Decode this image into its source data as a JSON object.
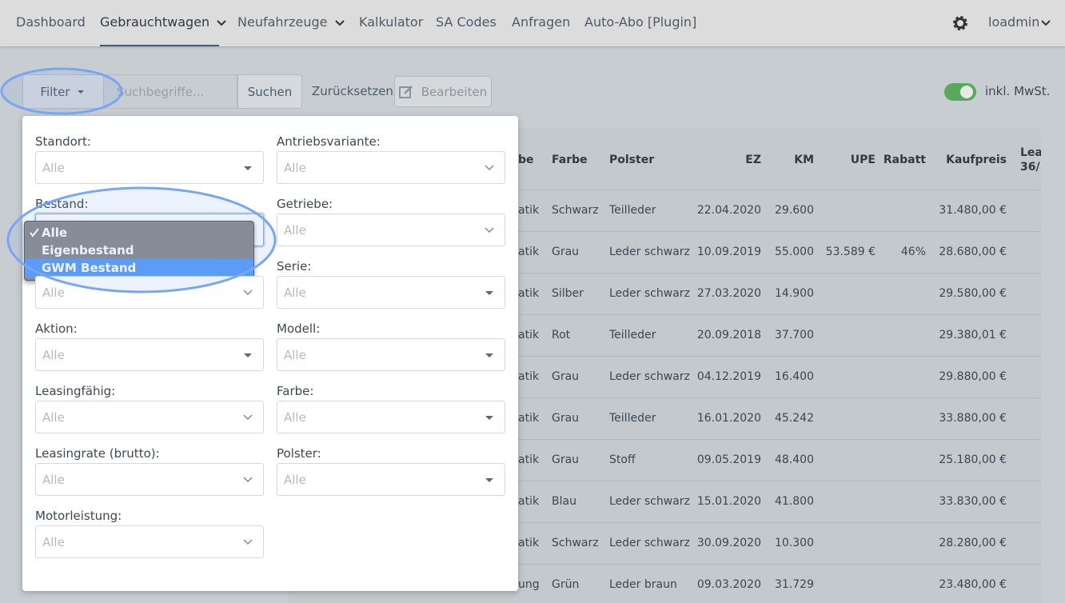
{
  "nav": {
    "items": [
      {
        "label": "Dashboard"
      },
      {
        "label": "Gebrauchtwagen",
        "dropdown": true,
        "active": true
      },
      {
        "label": "Neufahrzeuge",
        "dropdown": true
      },
      {
        "label": "Kalkulator"
      },
      {
        "label": "SA Codes"
      },
      {
        "label": "Anfragen"
      },
      {
        "label": "Auto-Abo [Plugin]"
      }
    ],
    "user": "loadmin"
  },
  "toolbar": {
    "filter": "Filter",
    "search_placeholder": "Suchbegriffe...",
    "search": "Suchen",
    "reset": "Zurücksetzen",
    "edit": "Bearbeiten",
    "vat_toggle": "inkl. MwSt."
  },
  "filter_panel": {
    "left_fields": [
      {
        "label": "Standort:",
        "value": "Alle",
        "arrow": "caret"
      },
      {
        "label": "Bestand:",
        "options": [
          "Alle",
          "Eigenbestand",
          "GWM Bestand"
        ],
        "selected": 0,
        "highlighted": 2
      },
      {
        "value": "Alle",
        "arrow": "chevron"
      },
      {
        "label": "Aktion:",
        "value": "Alle",
        "arrow": "caret"
      },
      {
        "label": "Leasingfähig:",
        "value": "Alle",
        "arrow": "chevron"
      },
      {
        "label": "Leasingrate (brutto):",
        "value": "Alle",
        "arrow": "chevron"
      },
      {
        "label": "Motorleistung:",
        "value": "Alle",
        "arrow": "chevron"
      }
    ],
    "right_fields": [
      {
        "label": "Antriebsvariante:",
        "value": "Alle",
        "arrow": "chevron"
      },
      {
        "label": "Getriebe:",
        "value": "Alle",
        "arrow": "chevron"
      },
      {
        "label": "Serie:",
        "value": "Alle",
        "arrow": "caret"
      },
      {
        "label": "Modell:",
        "value": "Alle",
        "arrow": "caret"
      },
      {
        "label": "Farbe:",
        "value": "Alle",
        "arrow": "caret"
      },
      {
        "label": "Polster:",
        "value": "Alle",
        "arrow": "caret"
      }
    ]
  },
  "table": {
    "columns": {
      "getriebe": "be",
      "farbe": "Farbe",
      "polster": "Polster",
      "ez": "EZ",
      "km": "KM",
      "upe": "UPE",
      "rabatt": "Rabatt",
      "kaufpreis": "Kaufpreis",
      "leasing": "Leas 36/"
    },
    "rows": [
      {
        "getriebe": "atik",
        "farbe": "Schwarz",
        "polster": "Teilleder",
        "ez": "22.04.2020",
        "km": "29.600",
        "kaufpreis": "31.480,00 €"
      },
      {
        "getriebe": "atik",
        "farbe": "Grau",
        "polster": "Leder schwarz",
        "ez": "10.09.2019",
        "km": "55.000",
        "upe": "53.589 €",
        "rabatt": "46%",
        "kaufpreis": "28.680,00 €"
      },
      {
        "getriebe": "atik",
        "farbe": "Silber",
        "polster": "Leder schwarz",
        "ez": "27.03.2020",
        "km": "14.900",
        "kaufpreis": "29.580,00 €"
      },
      {
        "getriebe": "atik",
        "farbe": "Rot",
        "polster": "Teilleder",
        "ez": "20.09.2018",
        "km": "37.700",
        "kaufpreis": "29.380,01 €"
      },
      {
        "getriebe": "atik",
        "farbe": "Grau",
        "polster": "Leder schwarz",
        "ez": "04.12.2019",
        "km": "16.400",
        "kaufpreis": "29.880,00 €"
      },
      {
        "getriebe": "atik",
        "farbe": "Grau",
        "polster": "Teilleder",
        "ez": "16.01.2020",
        "km": "45.242",
        "kaufpreis": "33.880,00 €"
      },
      {
        "getriebe": "atik",
        "farbe": "Grau",
        "polster": "Stoff",
        "ez": "09.05.2019",
        "km": "48.400",
        "kaufpreis": "25.180,00 €"
      },
      {
        "getriebe": "atik",
        "farbe": "Blau",
        "polster": "Leder schwarz",
        "ez": "15.01.2020",
        "km": "41.800",
        "kaufpreis": "33.830,00 €"
      },
      {
        "getriebe": "atik",
        "farbe": "Schwarz",
        "polster": "Leder schwarz",
        "ez": "30.09.2020",
        "km": "10.300",
        "kaufpreis": "28.280,00 €"
      },
      {
        "getriebe": "ung",
        "farbe": "Grün",
        "polster": "Leder braun",
        "ez": "09.03.2020",
        "km": "31.729",
        "kaufpreis": "23.480,00 €"
      }
    ]
  }
}
